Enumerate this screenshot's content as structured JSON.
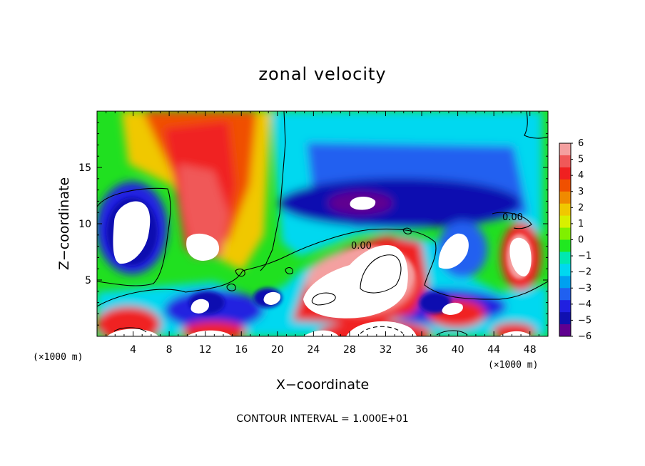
{
  "chart_data": {
    "type": "heatmap",
    "title": "zonal velocity",
    "xlabel": "X−coordinate",
    "ylabel": "Z−coordinate",
    "x_unit_left": "(×1000 m)",
    "x_unit_right": "(×1000 m)",
    "xlim": [
      0,
      50
    ],
    "ylim": [
      0,
      20
    ],
    "xticks": [
      "4",
      "8",
      "12",
      "16",
      "20",
      "24",
      "28",
      "32",
      "36",
      "40",
      "44",
      "48"
    ],
    "xtick_values": [
      4,
      8,
      12,
      16,
      20,
      24,
      28,
      32,
      36,
      40,
      44,
      48
    ],
    "yticks": [
      "5",
      "10",
      "15"
    ],
    "ytick_values": [
      5,
      10,
      15
    ],
    "colorbar": {
      "min": -6,
      "max": 6,
      "labels": [
        "6",
        "5",
        "4",
        "3",
        "2",
        "1",
        "0",
        "−1",
        "−2",
        "−3",
        "−4",
        "−5",
        "−6"
      ],
      "colors": [
        "#f4a0a0",
        "#f05858",
        "#f02020",
        "#f05000",
        "#f08a00",
        "#f0c800",
        "#d8f000",
        "#80f000",
        "#20e820",
        "#00e8b0",
        "#00d8f0",
        "#00a0f0",
        "#2060f0",
        "#2020e0",
        "#1010b0",
        "#600090"
      ]
    },
    "contour_labels": [
      "0.00",
      "0.00"
    ],
    "contour_interval_text": "CONTOUR INTERVAL = 1.000E+01"
  }
}
